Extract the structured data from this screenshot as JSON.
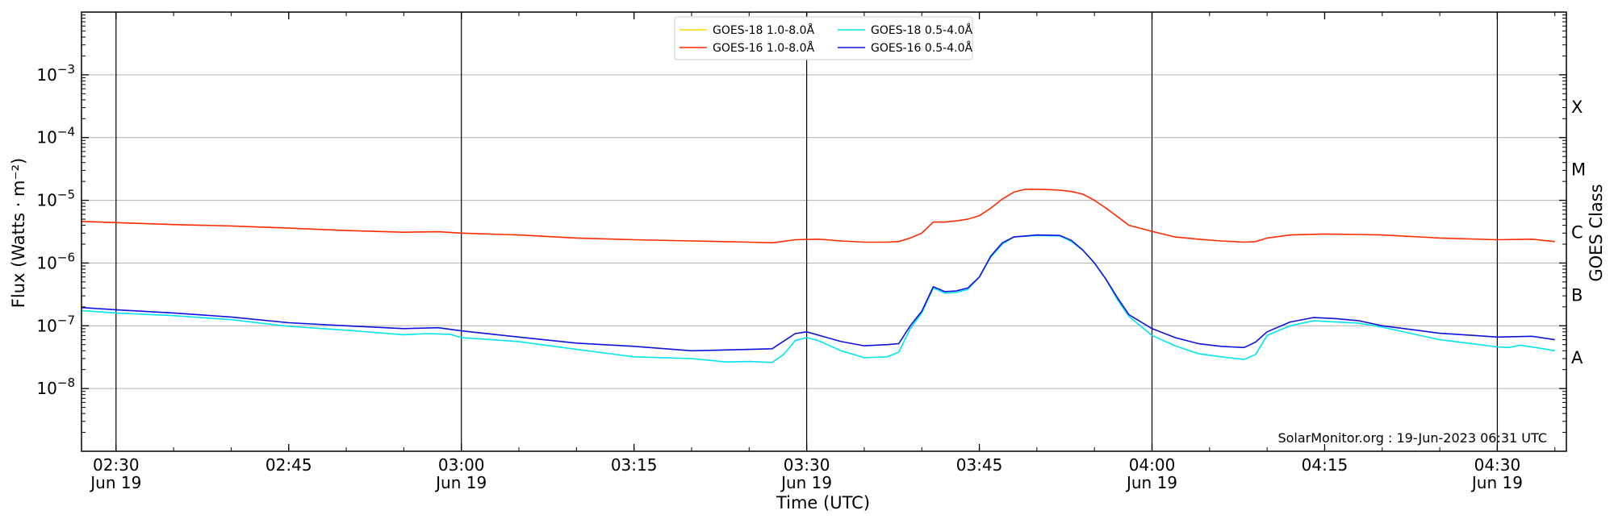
{
  "chart_data": {
    "type": "line",
    "title": "",
    "xlabel": "Time (UTC)",
    "ylabel": "Flux (Watts · m⁻²)",
    "right_ylabel": "GOES Class",
    "y_scale": "log",
    "ylim": [
      1e-09,
      0.01
    ],
    "xlim": [
      "2023-06-19T02:27",
      "2023-06-19T04:36"
    ],
    "grid": "horizontal",
    "legend_position": "top-center",
    "credit": "SolarMonitor.org : 19-Jun-2023 06:31 UTC",
    "x_ticks": [
      {
        "time": "2023-06-19T02:30",
        "label": "02:30",
        "sublabel": "Jun 19"
      },
      {
        "time": "2023-06-19T02:45",
        "label": "02:45",
        "sublabel": ""
      },
      {
        "time": "2023-06-19T03:00",
        "label": "03:00",
        "sublabel": "Jun 19"
      },
      {
        "time": "2023-06-19T03:15",
        "label": "03:15",
        "sublabel": ""
      },
      {
        "time": "2023-06-19T03:30",
        "label": "03:30",
        "sublabel": "Jun 19"
      },
      {
        "time": "2023-06-19T03:45",
        "label": "03:45",
        "sublabel": ""
      },
      {
        "time": "2023-06-19T04:00",
        "label": "04:00",
        "sublabel": "Jun 19"
      },
      {
        "time": "2023-06-19T04:15",
        "label": "04:15",
        "sublabel": ""
      },
      {
        "time": "2023-06-19T04:30",
        "label": "04:30",
        "sublabel": "Jun 19"
      }
    ],
    "vertical_lines": [
      "2023-06-19T02:30",
      "2023-06-19T03:00",
      "2023-06-19T03:30",
      "2023-06-19T04:00",
      "2023-06-19T04:30"
    ],
    "y_ticks": [
      {
        "value": 1e-08,
        "base": "10",
        "exp": "−8"
      },
      {
        "value": 1e-07,
        "base": "10",
        "exp": "−7"
      },
      {
        "value": 1e-06,
        "base": "10",
        "exp": "−6"
      },
      {
        "value": 1e-05,
        "base": "10",
        "exp": "−5"
      },
      {
        "value": 0.0001,
        "base": "10",
        "exp": "−4"
      },
      {
        "value": 0.001,
        "base": "10",
        "exp": "−3"
      }
    ],
    "goes_classes": [
      {
        "label": "A",
        "value": 3.16e-08
      },
      {
        "label": "B",
        "value": 3.16e-07
      },
      {
        "label": "C",
        "value": 3.16e-06
      },
      {
        "label": "M",
        "value": 3.16e-05
      },
      {
        "label": "X",
        "value": 0.000316
      }
    ],
    "series": [
      {
        "name": "GOES-18 1.0-8.0Å",
        "color": "#ffd700",
        "points": []
      },
      {
        "name": "GOES-16 1.0-8.0Å",
        "color": "#ff2a00",
        "points": [
          [
            "02:27",
            4.6e-06
          ],
          [
            "02:35",
            4.1e-06
          ],
          [
            "02:40",
            3.9e-06
          ],
          [
            "02:45",
            3.6e-06
          ],
          [
            "02:50",
            3.3e-06
          ],
          [
            "02:55",
            3.1e-06
          ],
          [
            "02:58",
            3.15e-06
          ],
          [
            "03:00",
            3e-06
          ],
          [
            "03:05",
            2.8e-06
          ],
          [
            "03:10",
            2.5e-06
          ],
          [
            "03:15",
            2.35e-06
          ],
          [
            "03:20",
            2.25e-06
          ],
          [
            "03:25",
            2.15e-06
          ],
          [
            "03:27",
            2.1e-06
          ],
          [
            "03:29",
            2.35e-06
          ],
          [
            "03:31",
            2.4e-06
          ],
          [
            "03:33",
            2.25e-06
          ],
          [
            "03:35",
            2.15e-06
          ],
          [
            "03:37",
            2.15e-06
          ],
          [
            "03:38",
            2.2e-06
          ],
          [
            "03:39",
            2.5e-06
          ],
          [
            "03:40",
            3e-06
          ],
          [
            "03:41",
            4.5e-06
          ],
          [
            "03:42",
            4.5e-06
          ],
          [
            "03:43",
            4.7e-06
          ],
          [
            "03:44",
            5e-06
          ],
          [
            "03:45",
            5.7e-06
          ],
          [
            "03:46",
            7.5e-06
          ],
          [
            "03:47",
            1.05e-05
          ],
          [
            "03:48",
            1.35e-05
          ],
          [
            "03:49",
            1.5e-05
          ],
          [
            "03:50",
            1.5e-05
          ],
          [
            "03:51",
            1.48e-05
          ],
          [
            "03:52",
            1.45e-05
          ],
          [
            "03:53",
            1.38e-05
          ],
          [
            "03:54",
            1.25e-05
          ],
          [
            "03:55",
            1e-05
          ],
          [
            "03:56",
            7.5e-06
          ],
          [
            "03:57",
            5.5e-06
          ],
          [
            "03:58",
            4e-06
          ],
          [
            "04:00",
            3.2e-06
          ],
          [
            "04:02",
            2.6e-06
          ],
          [
            "04:04",
            2.4e-06
          ],
          [
            "04:06",
            2.25e-06
          ],
          [
            "04:08",
            2.15e-06
          ],
          [
            "04:09",
            2.2e-06
          ],
          [
            "04:10",
            2.5e-06
          ],
          [
            "04:12",
            2.8e-06
          ],
          [
            "04:15",
            2.9e-06
          ],
          [
            "04:18",
            2.85e-06
          ],
          [
            "04:20",
            2.8e-06
          ],
          [
            "04:25",
            2.5e-06
          ],
          [
            "04:30",
            2.35e-06
          ],
          [
            "04:33",
            2.4e-06
          ],
          [
            "04:35",
            2.2e-06
          ]
        ]
      },
      {
        "name": "GOES-18 0.5-4.0Å",
        "color": "#00e5ee",
        "points": [
          [
            "02:27",
            1.75e-07
          ],
          [
            "02:30",
            1.6e-07
          ],
          [
            "02:35",
            1.45e-07
          ],
          [
            "02:40",
            1.25e-07
          ],
          [
            "02:45",
            9.8e-08
          ],
          [
            "02:50",
            8.5e-08
          ],
          [
            "02:55",
            7.2e-08
          ],
          [
            "02:57",
            7.5e-08
          ],
          [
            "02:59",
            7.3e-08
          ],
          [
            "03:00",
            6.5e-08
          ],
          [
            "03:05",
            5.6e-08
          ],
          [
            "03:10",
            4.2e-08
          ],
          [
            "03:15",
            3.2e-08
          ],
          [
            "03:20",
            3e-08
          ],
          [
            "03:23",
            2.65e-08
          ],
          [
            "03:25",
            2.7e-08
          ],
          [
            "03:27",
            2.6e-08
          ],
          [
            "03:28",
            3.5e-08
          ],
          [
            "03:29",
            5.8e-08
          ],
          [
            "03:30",
            6.5e-08
          ],
          [
            "03:31",
            5.8e-08
          ],
          [
            "03:33",
            4e-08
          ],
          [
            "03:35",
            3.1e-08
          ],
          [
            "03:37",
            3.2e-08
          ],
          [
            "03:38",
            3.8e-08
          ],
          [
            "03:39",
            9e-08
          ],
          [
            "03:40",
            1.6e-07
          ],
          [
            "03:41",
            4e-07
          ],
          [
            "03:42",
            3.3e-07
          ],
          [
            "03:43",
            3.4e-07
          ],
          [
            "03:44",
            3.8e-07
          ],
          [
            "03:45",
            6e-07
          ],
          [
            "03:46",
            1.25e-06
          ],
          [
            "03:47",
            2e-06
          ],
          [
            "03:48",
            2.6e-06
          ],
          [
            "03:50",
            2.75e-06
          ],
          [
            "03:52",
            2.7e-06
          ],
          [
            "03:53",
            2.2e-06
          ],
          [
            "03:54",
            1.6e-06
          ],
          [
            "03:55",
            1e-06
          ],
          [
            "03:56",
            5.5e-07
          ],
          [
            "03:57",
            2.6e-07
          ],
          [
            "03:58",
            1.4e-07
          ],
          [
            "04:00",
            7e-08
          ],
          [
            "04:02",
            4.8e-08
          ],
          [
            "04:04",
            3.6e-08
          ],
          [
            "04:06",
            3.2e-08
          ],
          [
            "04:08",
            2.9e-08
          ],
          [
            "04:09",
            3.5e-08
          ],
          [
            "04:10",
            7e-08
          ],
          [
            "04:12",
            1e-07
          ],
          [
            "04:14",
            1.2e-07
          ],
          [
            "04:16",
            1.15e-07
          ],
          [
            "04:18",
            1.1e-07
          ],
          [
            "04:20",
            9.5e-08
          ],
          [
            "04:23",
            7.2e-08
          ],
          [
            "04:25",
            6e-08
          ],
          [
            "04:27",
            5.4e-08
          ],
          [
            "04:30",
            4.6e-08
          ],
          [
            "04:31",
            4.5e-08
          ],
          [
            "04:32",
            4.9e-08
          ],
          [
            "04:34",
            4.3e-08
          ],
          [
            "04:35",
            4e-08
          ]
        ]
      },
      {
        "name": "GOES-16 0.5-4.0Å",
        "color": "#1010e0",
        "points": [
          [
            "02:27",
            1.95e-07
          ],
          [
            "02:30",
            1.8e-07
          ],
          [
            "02:35",
            1.6e-07
          ],
          [
            "02:40",
            1.38e-07
          ],
          [
            "02:45",
            1.12e-07
          ],
          [
            "02:50",
            1e-07
          ],
          [
            "02:55",
            9e-08
          ],
          [
            "02:58",
            9.3e-08
          ],
          [
            "03:00",
            8.3e-08
          ],
          [
            "03:05",
            6.6e-08
          ],
          [
            "03:10",
            5.3e-08
          ],
          [
            "03:15",
            4.7e-08
          ],
          [
            "03:20",
            4e-08
          ],
          [
            "03:25",
            4.2e-08
          ],
          [
            "03:27",
            4.3e-08
          ],
          [
            "03:29",
            7.5e-08
          ],
          [
            "03:30",
            8e-08
          ],
          [
            "03:33",
            5.6e-08
          ],
          [
            "03:35",
            4.8e-08
          ],
          [
            "03:37",
            5e-08
          ],
          [
            "03:38",
            5.2e-08
          ],
          [
            "03:39",
            1e-07
          ],
          [
            "03:40",
            1.7e-07
          ],
          [
            "03:41",
            4.2e-07
          ],
          [
            "03:42",
            3.5e-07
          ],
          [
            "03:43",
            3.6e-07
          ],
          [
            "03:44",
            4e-07
          ],
          [
            "03:45",
            6e-07
          ],
          [
            "03:46",
            1.3e-06
          ],
          [
            "03:47",
            2.1e-06
          ],
          [
            "03:48",
            2.6e-06
          ],
          [
            "03:50",
            2.8e-06
          ],
          [
            "03:52",
            2.75e-06
          ],
          [
            "03:53",
            2.3e-06
          ],
          [
            "03:54",
            1.6e-06
          ],
          [
            "03:55",
            1e-06
          ],
          [
            "03:56",
            5.5e-07
          ],
          [
            "03:57",
            2.8e-07
          ],
          [
            "03:58",
            1.5e-07
          ],
          [
            "04:00",
            9e-08
          ],
          [
            "04:02",
            6.5e-08
          ],
          [
            "04:04",
            5.2e-08
          ],
          [
            "04:06",
            4.7e-08
          ],
          [
            "04:08",
            4.5e-08
          ],
          [
            "04:09",
            5.5e-08
          ],
          [
            "04:10",
            8e-08
          ],
          [
            "04:12",
            1.15e-07
          ],
          [
            "04:14",
            1.35e-07
          ],
          [
            "04:16",
            1.3e-07
          ],
          [
            "04:18",
            1.2e-07
          ],
          [
            "04:20",
            1e-07
          ],
          [
            "04:23",
            8.5e-08
          ],
          [
            "04:25",
            7.6e-08
          ],
          [
            "04:28",
            7e-08
          ],
          [
            "04:30",
            6.6e-08
          ],
          [
            "04:33",
            6.8e-08
          ],
          [
            "04:35",
            6e-08
          ]
        ]
      }
    ]
  }
}
